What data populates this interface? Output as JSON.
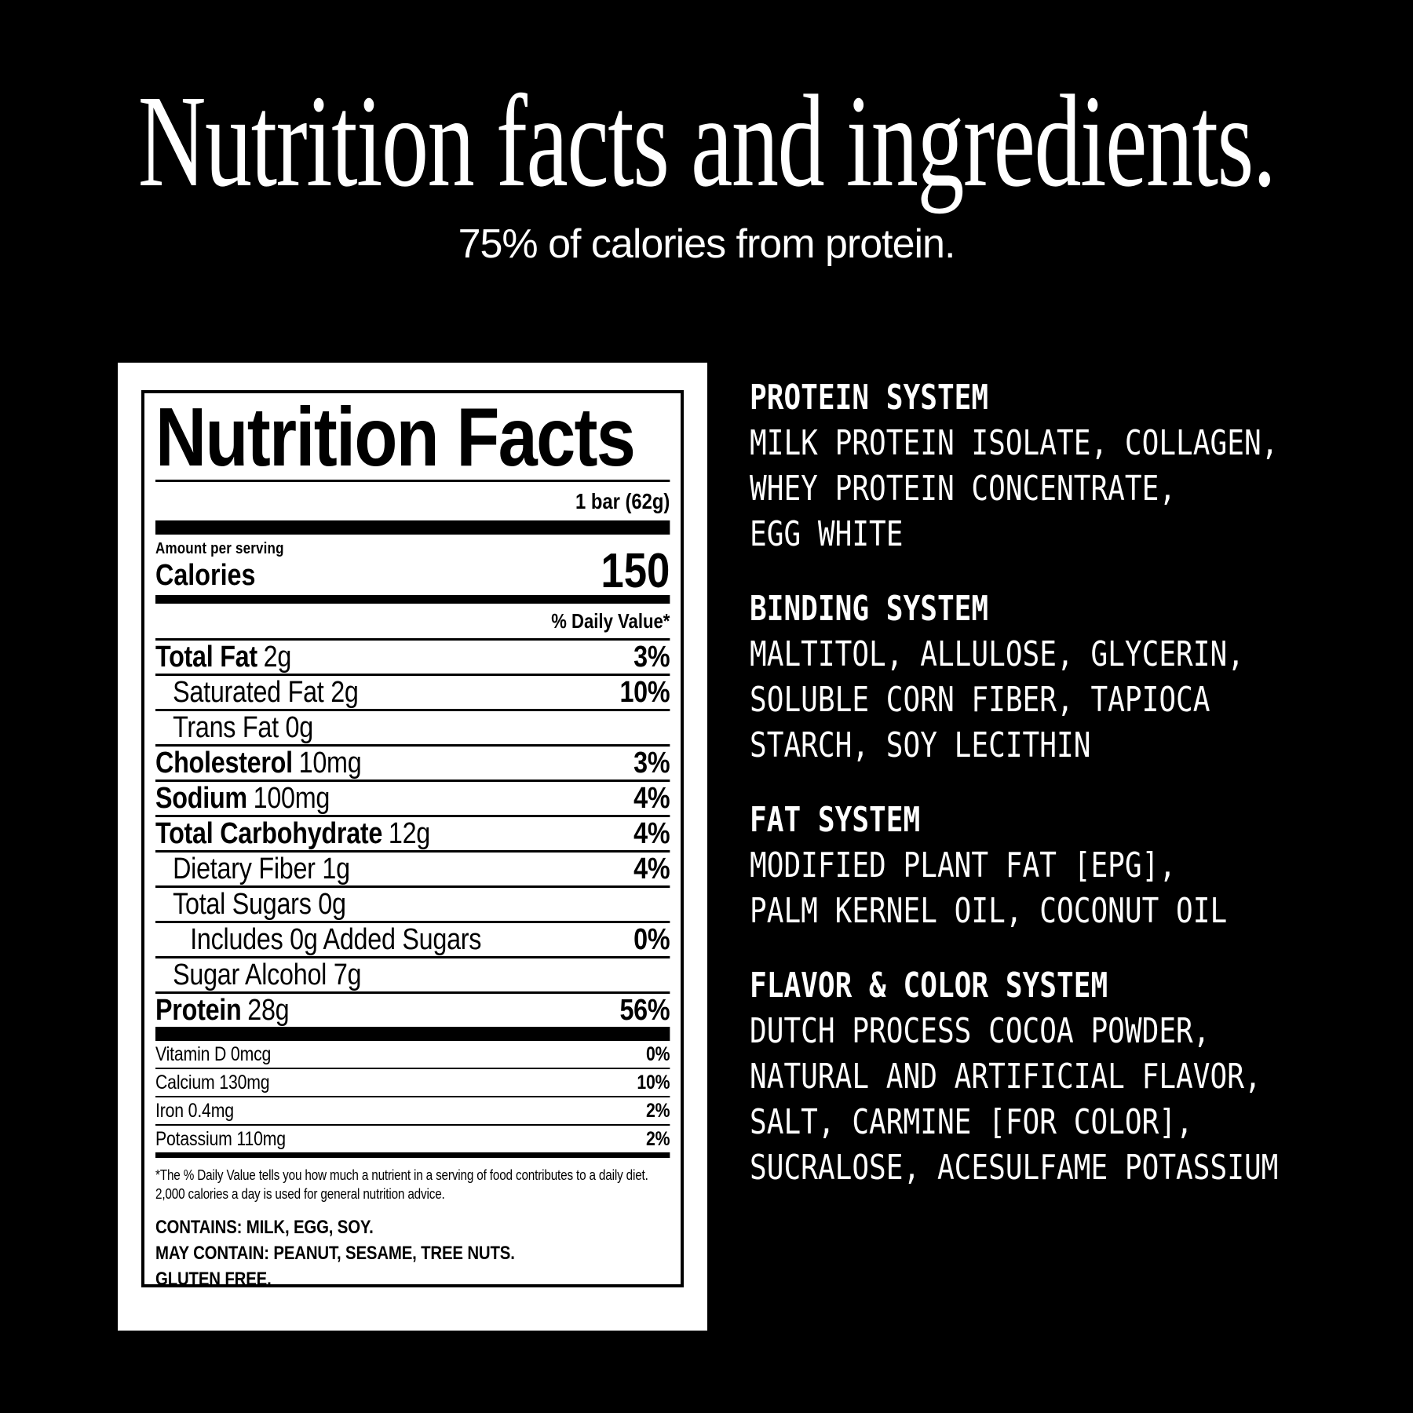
{
  "colors": {
    "background": "#000000",
    "text": "#ffffff",
    "label_background": "#ffffff",
    "label_text": "#000000"
  },
  "header": {
    "title": "Nutrition facts and ingredients.",
    "subtitle": "75% of calories from protein."
  },
  "label": {
    "title": "Nutrition Facts",
    "serving": "1 bar (62g)",
    "amount_per_serving": "Amount per serving",
    "calories_label": "Calories",
    "calories_value": "150",
    "daily_value_header": "% Daily Value*",
    "rows": [
      {
        "bold": "Total Fat",
        "rest": "2g",
        "pct": "3%"
      },
      {
        "bold": "",
        "rest": "Saturated Fat 2g",
        "pct": "10%"
      },
      {
        "bold": "",
        "rest": "Trans Fat 0g",
        "pct": ""
      },
      {
        "bold": "Cholesterol",
        "rest": "10mg",
        "pct": "3%"
      },
      {
        "bold": "Sodium",
        "rest": "100mg",
        "pct": "4%"
      },
      {
        "bold": "Total Carbohydrate",
        "rest": "12g",
        "pct": "4%"
      },
      {
        "bold": "",
        "rest": "Dietary Fiber 1g",
        "pct": "4%"
      },
      {
        "bold": "",
        "rest": "Total Sugars 0g",
        "pct": ""
      },
      {
        "bold": "",
        "rest": "Includes 0g Added Sugars",
        "pct": "0%"
      },
      {
        "bold": "",
        "rest": "Sugar Alcohol 7g",
        "pct": ""
      },
      {
        "bold": "Protein",
        "rest": "28g",
        "pct": "56%"
      }
    ],
    "vitamins": [
      {
        "name": "Vitamin D 0mcg",
        "pct": "0%"
      },
      {
        "name": "Calcium 130mg",
        "pct": "10%"
      },
      {
        "name": "Iron 0.4mg",
        "pct": "2%"
      },
      {
        "name": "Potassium 110mg",
        "pct": "2%"
      }
    ],
    "footnote": "*The % Daily Value tells you how much a nutrient in a serving of food contributes to a daily diet. 2,000 calories a day is used for general nutrition advice.",
    "allergens": [
      "CONTAINS: MILK, EGG, SOY.",
      "MAY CONTAIN: PEANUT, SESAME, TREE NUTS.",
      "GLUTEN FREE."
    ]
  },
  "ingredients": {
    "sections": [
      {
        "title": "PROTEIN SYSTEM",
        "lines": [
          "MILK PROTEIN ISOLATE, COLLAGEN,",
          "WHEY PROTEIN CONCENTRATE,",
          "EGG WHITE"
        ]
      },
      {
        "title": "BINDING SYSTEM",
        "lines": [
          "MALTITOL, ALLULOSE, GLYCERIN,",
          "SOLUBLE CORN FIBER, TAPIOCA",
          "STARCH, SOY LECITHIN"
        ]
      },
      {
        "title": "FAT SYSTEM",
        "lines": [
          "MODIFIED PLANT FAT [EPG],",
          "PALM KERNEL OIL, COCONUT OIL"
        ]
      },
      {
        "title": "FLAVOR & COLOR SYSTEM",
        "lines": [
          "DUTCH PROCESS COCOA POWDER,",
          "NATURAL AND ARTIFICIAL FLAVOR,",
          "SALT, CARMINE [FOR COLOR],",
          "SUCRALOSE, ACESULFAME POTASSIUM"
        ]
      }
    ]
  }
}
